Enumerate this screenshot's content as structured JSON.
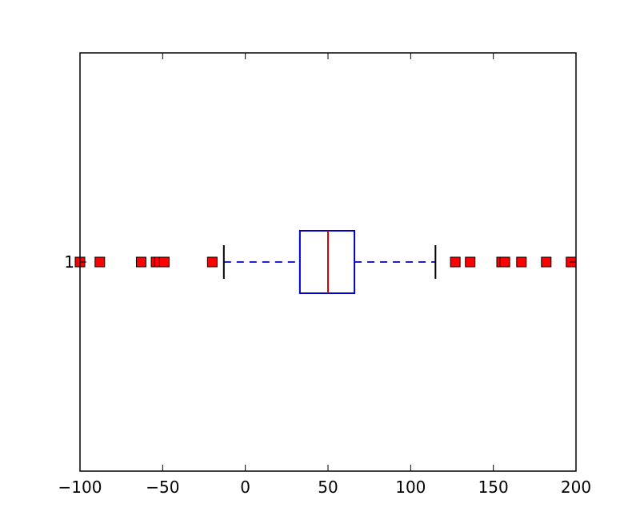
{
  "chart_data": {
    "type": "boxplot",
    "orientation": "horizontal",
    "title": "",
    "xlabel": "",
    "ylabel": "",
    "xlim": [
      -100,
      200
    ],
    "x_ticks": [
      -100,
      -50,
      0,
      50,
      100,
      150,
      200
    ],
    "x_tick_labels": [
      "−100",
      "−50",
      "0",
      "50",
      "100",
      "150",
      "200"
    ],
    "y_ticks": [
      1
    ],
    "y_tick_labels": [
      "1"
    ],
    "grid": false,
    "boxes": [
      {
        "position": 1,
        "q1": 33,
        "median": 50,
        "q3": 66,
        "whisker_low": -13,
        "whisker_high": 115,
        "outliers": [
          -100,
          -88,
          -63,
          -54,
          -52,
          -49,
          -20,
          127,
          136,
          155,
          157,
          167,
          182,
          197
        ]
      }
    ],
    "colors": {
      "box": "#0000cc",
      "median": "#dd0000",
      "whisker": "#0000cc",
      "cap": "#000000",
      "outlier_fill": "#ff0000",
      "outlier_edge": "#000000",
      "axes": "#000000"
    }
  }
}
